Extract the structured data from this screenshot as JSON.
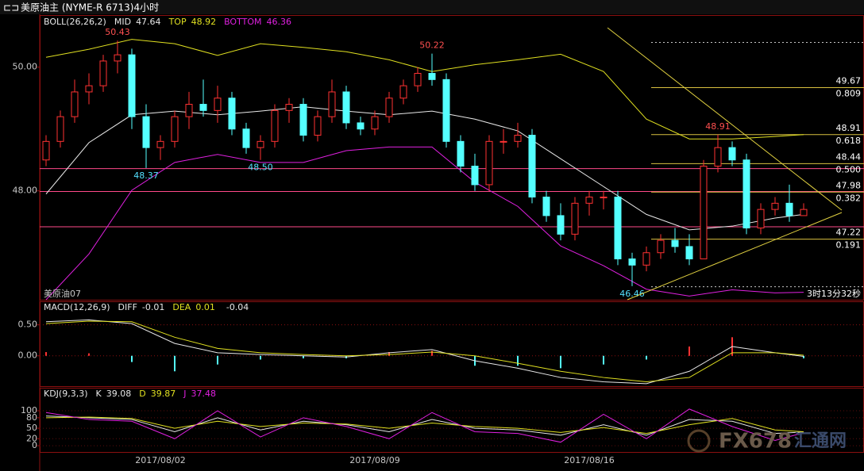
{
  "header": {
    "title": "美原油主 (NYME-R 6713)4小时",
    "symbol": "美原油07",
    "countdown": "3时13分32秒",
    "watermark": "FX678",
    "watermark_cn": "汇通网"
  },
  "chart_data": [
    {
      "type": "candlestick",
      "name": "BOLL(26,26,2)",
      "categories": [
        null,
        null,
        null,
        null,
        null,
        null,
        null,
        null,
        "2017/08/02",
        null,
        null,
        null,
        null,
        null,
        null,
        null,
        null,
        null,
        null,
        null,
        null,
        null,
        null,
        "2017/08/09",
        null,
        null,
        null,
        null,
        null,
        null,
        null,
        null,
        null,
        null,
        null,
        null,
        null,
        null,
        "2017/08/16",
        null,
        null,
        null,
        null,
        null,
        null,
        null,
        null,
        null,
        null,
        null,
        null,
        null,
        null,
        null
      ],
      "open": [
        48.5,
        48.8,
        49.2,
        49.6,
        49.7,
        50.1,
        50.2,
        49.2,
        48.7,
        48.8,
        49.2,
        49.4,
        49.3,
        49.5,
        49.0,
        48.7,
        48.8,
        49.3,
        49.4,
        48.9,
        49.2,
        49.6,
        49.1,
        49.0,
        49.2,
        49.5,
        49.7,
        49.9,
        49.8,
        48.8,
        48.4,
        48.1,
        48.8,
        48.8,
        48.9,
        47.9,
        47.6,
        47.3,
        47.8,
        47.9,
        47.9,
        46.9,
        46.8,
        47.0,
        47.2,
        47.1,
        46.9,
        48.4,
        48.7,
        48.5,
        47.4,
        47.7,
        47.8,
        47.6
      ],
      "high": [
        48.9,
        49.3,
        49.8,
        49.9,
        50.2,
        50.43,
        50.3,
        49.4,
        48.9,
        49.3,
        49.6,
        49.8,
        49.7,
        49.6,
        49.1,
        48.9,
        49.4,
        49.5,
        49.5,
        49.3,
        49.8,
        49.7,
        49.2,
        49.3,
        49.6,
        49.8,
        50.0,
        50.22,
        49.9,
        48.9,
        48.6,
        48.9,
        49.0,
        49.1,
        49.0,
        48.0,
        47.8,
        47.9,
        48.0,
        48.0,
        48.0,
        47.0,
        47.1,
        47.3,
        47.4,
        47.3,
        48.5,
        48.91,
        48.8,
        48.6,
        47.8,
        47.9,
        48.1,
        47.8
      ],
      "low": [
        48.4,
        48.7,
        49.1,
        49.4,
        49.6,
        49.9,
        49.0,
        48.37,
        48.5,
        48.7,
        49.0,
        49.2,
        49.1,
        48.9,
        48.6,
        48.5,
        48.7,
        49.1,
        48.8,
        48.8,
        49.1,
        49.0,
        48.9,
        48.9,
        49.1,
        49.4,
        49.6,
        49.7,
        48.7,
        48.3,
        48.0,
        48.0,
        48.6,
        48.7,
        47.8,
        47.5,
        47.2,
        47.2,
        47.6,
        47.7,
        46.8,
        46.46,
        46.7,
        46.9,
        47.0,
        46.8,
        46.9,
        48.3,
        48.4,
        47.3,
        47.3,
        47.6,
        47.5,
        47.6
      ],
      "close": [
        48.8,
        49.2,
        49.6,
        49.7,
        50.1,
        50.2,
        49.2,
        48.7,
        48.8,
        49.2,
        49.4,
        49.3,
        49.5,
        49.0,
        48.7,
        48.8,
        49.3,
        49.4,
        48.9,
        49.2,
        49.6,
        49.1,
        49.0,
        49.2,
        49.5,
        49.7,
        49.9,
        49.8,
        48.8,
        48.4,
        48.1,
        48.8,
        48.8,
        48.9,
        47.9,
        47.6,
        47.3,
        47.8,
        47.9,
        47.9,
        46.9,
        46.8,
        47.0,
        47.2,
        47.1,
        46.9,
        48.4,
        48.7,
        48.5,
        47.4,
        47.7,
        47.8,
        47.6,
        47.7
      ],
      "up_color": "#ff3232",
      "down_color": "#54ffff",
      "ylim": [
        46.24,
        50.83
      ],
      "yticks": [
        {
          "value": 48,
          "label": "48.00"
        },
        {
          "value": 50,
          "label": "50.00"
        }
      ],
      "x": [
        0,
        3,
        6,
        9,
        12,
        15,
        18,
        21,
        24,
        27,
        30,
        33,
        36,
        39,
        42,
        45,
        48,
        51,
        53
      ],
      "series": [
        {
          "name": "MID",
          "color": "#e8e8e8",
          "legend_value": 47.64,
          "values": [
            47.95,
            48.78,
            49.23,
            49.29,
            49.23,
            49.29,
            49.36,
            49.29,
            49.23,
            49.29,
            49.16,
            48.97,
            48.52,
            48.07,
            47.62,
            47.37,
            47.43,
            47.56,
            47.62
          ]
        },
        {
          "name": "TOP",
          "color": "#e0e020",
          "legend_value": 48.92,
          "values": [
            50.16,
            50.29,
            50.45,
            50.38,
            50.19,
            50.38,
            50.32,
            50.25,
            50.12,
            49.93,
            50.04,
            50.12,
            50.21,
            49.93,
            49.16,
            48.84,
            48.84,
            48.88,
            48.91
          ]
        },
        {
          "name": "BOTTOM",
          "color": "#e020e0",
          "legend_value": 46.36,
          "values": [
            46.24,
            46.98,
            48.01,
            48.46,
            48.59,
            48.46,
            48.46,
            48.65,
            48.71,
            48.71,
            48.14,
            47.75,
            47.11,
            46.79,
            46.41,
            46.3,
            46.4,
            46.35,
            46.36
          ]
        }
      ],
      "levels": [
        {
          "value": 49.67,
          "ratio": "0.809"
        },
        {
          "value": 48.91,
          "ratio": "0.618"
        },
        {
          "value": 48.44,
          "ratio": "0.500"
        },
        {
          "value": 47.98,
          "ratio": "0.382"
        },
        {
          "value": 47.22,
          "ratio": "0.191"
        }
      ],
      "level_color": "#d8c040",
      "dashed_levels": [
        50.4,
        46.45
      ],
      "support_lines": [
        48.36,
        47.99,
        47.42
      ],
      "support_color": "#ff4a8a",
      "annotations": [
        {
          "index": 5,
          "value": 50.43
        },
        {
          "index": 7,
          "value": 48.37
        },
        {
          "index": 15,
          "value": 48.5,
          "label": "48.50"
        },
        {
          "index": 27,
          "value": 50.22
        },
        {
          "index": 47,
          "value": 48.91
        },
        {
          "index": 41,
          "value": 46.46
        }
      ]
    },
    {
      "type": "macd",
      "name": "MACD(12,26,9)",
      "ylim": [
        -0.49,
        0.88
      ],
      "yticks": [
        {
          "value": 0,
          "label": "0.00"
        },
        {
          "value": 0.5,
          "label": "0.50"
        }
      ],
      "grid": true,
      "grid_color": "#8a1010",
      "x": [
        0,
        3,
        6,
        9,
        12,
        15,
        18,
        21,
        24,
        27,
        30,
        33,
        36,
        39,
        42,
        45,
        48,
        51,
        53
      ],
      "series": [
        {
          "name": "DIFF",
          "color": "#e8e8e8",
          "legend_value": -0.01,
          "values": [
            0.55,
            0.58,
            0.52,
            0.2,
            0.05,
            0.02,
            0.0,
            -0.02,
            0.05,
            0.1,
            -0.08,
            -0.2,
            -0.35,
            -0.42,
            -0.45,
            -0.25,
            0.15,
            0.05,
            -0.01
          ]
        },
        {
          "name": "DEA",
          "color": "#e0e020",
          "legend_value": 0.01,
          "values": [
            0.52,
            0.56,
            0.55,
            0.3,
            0.12,
            0.05,
            0.02,
            0.0,
            0.02,
            0.06,
            0.0,
            -0.12,
            -0.25,
            -0.35,
            -0.42,
            -0.35,
            0.05,
            0.05,
            0.01
          ]
        }
      ],
      "histogram": {
        "legend_value": -0.04,
        "up_color": "#ff3232",
        "down_color": "#54ffff",
        "values": [
          0.06,
          0.04,
          -0.1,
          -0.25,
          -0.14,
          -0.06,
          -0.04,
          -0.04,
          0.06,
          0.08,
          -0.16,
          -0.16,
          -0.2,
          -0.14,
          -0.06,
          0.15,
          0.3,
          0.0,
          -0.04
        ]
      }
    },
    {
      "type": "line",
      "name": "KDJ(9,3,3)",
      "ylim": [
        -18,
        166
      ],
      "yticks": [
        0,
        20,
        50,
        80,
        100
      ],
      "grid": true,
      "grid_color": "#5a0c0c",
      "x": [
        0,
        3,
        6,
        9,
        12,
        15,
        18,
        21,
        24,
        27,
        30,
        33,
        36,
        39,
        42,
        45,
        48,
        51,
        53
      ],
      "series": [
        {
          "name": "K",
          "color": "#e8e8e8",
          "legend_value": 39.08,
          "values": [
            85,
            80,
            75,
            40,
            80,
            45,
            70,
            60,
            40,
            75,
            50,
            45,
            30,
            60,
            30,
            75,
            70,
            35,
            39
          ]
        },
        {
          "name": "D",
          "color": "#e0e020",
          "legend_value": 39.87,
          "values": [
            80,
            82,
            78,
            50,
            70,
            55,
            65,
            62,
            50,
            65,
            55,
            50,
            38,
            52,
            35,
            60,
            78,
            45,
            40
          ]
        },
        {
          "name": "J",
          "color": "#e020e0",
          "legend_value": 37.48,
          "values": [
            95,
            75,
            70,
            20,
            100,
            25,
            80,
            55,
            20,
            95,
            40,
            35,
            10,
            90,
            20,
            105,
            55,
            15,
            37
          ]
        }
      ]
    }
  ]
}
